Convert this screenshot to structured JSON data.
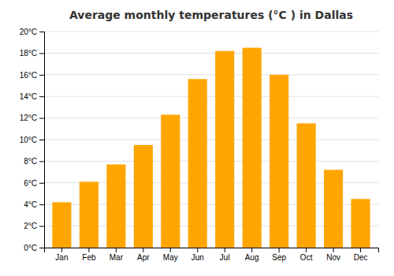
{
  "chart_data": {
    "type": "bar",
    "title": "Average monthly temperatures (°C ) in Dallas",
    "categories": [
      "Jan",
      "Feb",
      "Mar",
      "Apr",
      "May",
      "Jun",
      "Jul",
      "Aug",
      "Sep",
      "Oct",
      "Nov",
      "Dec"
    ],
    "values": [
      4.2,
      6.1,
      7.7,
      9.5,
      12.3,
      15.6,
      18.2,
      18.5,
      16.0,
      11.5,
      7.2,
      4.5
    ],
    "color": "#FFA500",
    "ylim": [
      0,
      20
    ],
    "yticks": [
      {
        "value": 0,
        "label": "0°C"
      },
      {
        "value": 2,
        "label": "2°C"
      },
      {
        "value": 4,
        "label": "4°C"
      },
      {
        "value": 6,
        "label": "6°C"
      },
      {
        "value": 8,
        "label": "8°C"
      },
      {
        "value": 10,
        "label": "10°C"
      },
      {
        "value": 12,
        "label": "12°C"
      },
      {
        "value": 14,
        "label": "14°C"
      },
      {
        "value": 16,
        "label": "16°C"
      },
      {
        "value": 18,
        "label": "18°C"
      },
      {
        "value": 20,
        "label": "20°C"
      }
    ],
    "grid": true
  }
}
